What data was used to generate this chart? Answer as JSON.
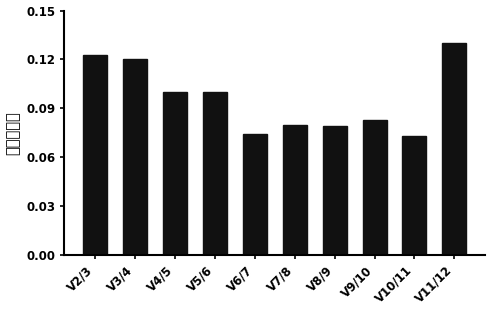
{
  "categories": [
    "V2/3",
    "V3/4",
    "V4/5",
    "V5/6",
    "V6/7",
    "V7/8",
    "V8/9",
    "V9/10",
    "V10/11",
    "V11/12"
  ],
  "values": [
    0.123,
    0.12,
    0.1,
    0.1,
    0.074,
    0.08,
    0.079,
    0.083,
    0.073,
    0.13
  ],
  "bar_color": "#111111",
  "ylabel": "成对变化值",
  "ylim": [
    0.0,
    0.15
  ],
  "yticks": [
    0.0,
    0.03,
    0.06,
    0.09,
    0.12,
    0.15
  ],
  "bar_width": 0.6,
  "background_color": "#ffffff",
  "tick_fontsize": 8.5,
  "ylabel_fontsize": 10.5
}
